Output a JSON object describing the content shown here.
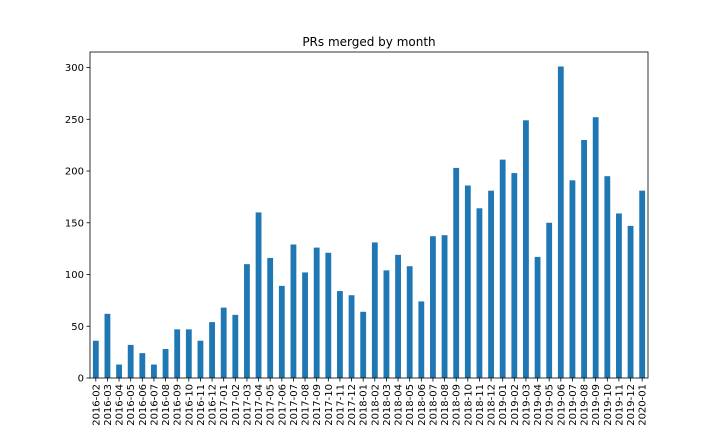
{
  "chart_data": {
    "type": "bar",
    "title": "PRs merged by month",
    "xlabel": "",
    "ylabel": "",
    "ylim": [
      0,
      315
    ],
    "yticks": [
      0,
      50,
      100,
      150,
      200,
      250,
      300
    ],
    "grid": false,
    "legend": "none",
    "bar_color": "#1f77b4",
    "categories": [
      "2016-02",
      "2016-03",
      "2016-04",
      "2016-05",
      "2016-06",
      "2016-07",
      "2016-08",
      "2016-09",
      "2016-10",
      "2016-11",
      "2016-12",
      "2017-01",
      "2017-02",
      "2017-03",
      "2017-04",
      "2017-05",
      "2017-06",
      "2017-07",
      "2017-08",
      "2017-09",
      "2017-10",
      "2017-11",
      "2017-12",
      "2018-01",
      "2018-02",
      "2018-03",
      "2018-04",
      "2018-05",
      "2018-06",
      "2018-07",
      "2018-08",
      "2018-09",
      "2018-10",
      "2018-11",
      "2018-12",
      "2019-01",
      "2019-02",
      "2019-03",
      "2019-04",
      "2019-05",
      "2019-06",
      "2019-07",
      "2019-08",
      "2019-09",
      "2019-10",
      "2019-11",
      "2019-12",
      "2020-01"
    ],
    "values": [
      36,
      62,
      13,
      32,
      24,
      13,
      28,
      47,
      47,
      36,
      54,
      68,
      61,
      110,
      160,
      116,
      89,
      129,
      102,
      126,
      121,
      84,
      80,
      64,
      131,
      104,
      119,
      108,
      74,
      137,
      138,
      203,
      186,
      164,
      181,
      211,
      198,
      249,
      117,
      150,
      301,
      191,
      230,
      252,
      195,
      159,
      147,
      181
    ]
  }
}
